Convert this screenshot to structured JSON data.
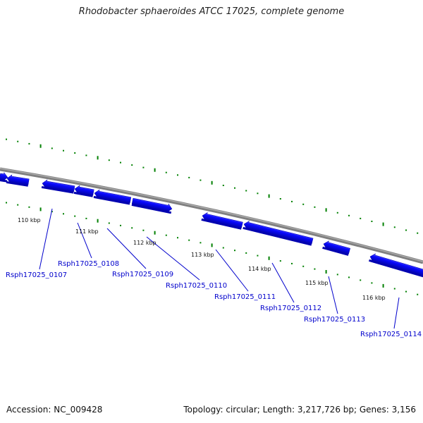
{
  "header": {
    "title": "Rhodobacter sphaeroides ATCC 17025, complete genome"
  },
  "footer": {
    "accession": "Accession: NC_009428",
    "summary": "Topology: circular; Length: 3,217,726 bp; Genes: 3,156"
  },
  "colors": {
    "backbone": "#808080",
    "gene": "#0a0aff",
    "gene_label": "#0000cc",
    "dots": "#008000"
  },
  "tick_labels": [
    "110 kbp",
    "111 kbp",
    "112 kbp",
    "113 kbp",
    "114 kbp",
    "115 kbp",
    "116 kbp"
  ],
  "gene_labels": [
    "Rsph17025_0107",
    "Rsph17025_0108",
    "Rsph17025_0109",
    "Rsph17025_0110",
    "Rsph17025_0111",
    "Rsph17025_0112",
    "Rsph17025_0113",
    "Rsph17025_0114"
  ]
}
